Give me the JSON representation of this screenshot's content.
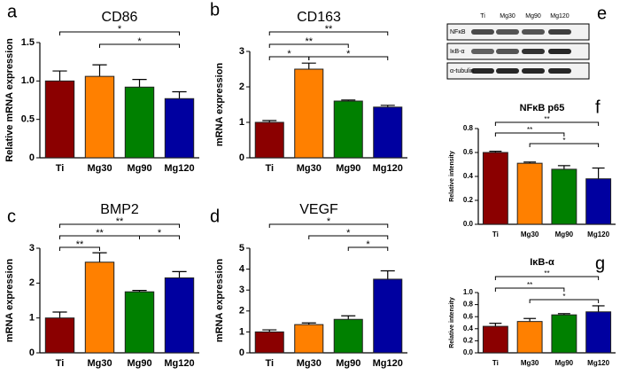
{
  "chart_data": [
    {
      "type": "bar",
      "panel_label": "a",
      "title": "CD86",
      "ylabel": "Relative mRNA expression",
      "categories": [
        "Ti",
        "Mg30",
        "Mg90",
        "Mg120"
      ],
      "values": [
        1.0,
        1.06,
        0.92,
        0.77
      ],
      "errors": [
        0.13,
        0.15,
        0.1,
        0.09
      ],
      "colors": [
        "#8b0000",
        "#ff8000",
        "#008000",
        "#0000a0"
      ],
      "ylim": [
        0,
        1.5
      ],
      "yticks": [
        0,
        0.5,
        {
          "value": 1,
          "label": "1.0"
        },
        1.5
      ],
      "significance": [
        {
          "from": 0,
          "to": 3,
          "label": "*"
        },
        {
          "from": 1,
          "to": 3,
          "label": "*"
        }
      ]
    },
    {
      "type": "bar",
      "panel_label": "b",
      "title": "CD163",
      "ylabel": "mRNA expression",
      "categories": [
        "Ti",
        "Mg30",
        "Mg90",
        "Mg120"
      ],
      "values": [
        1.0,
        2.5,
        1.6,
        1.43
      ],
      "errors": [
        0.05,
        0.17,
        0.03,
        0.05
      ],
      "colors": [
        "#8b0000",
        "#ff8000",
        "#008000",
        "#0000a0"
      ],
      "ylim": [
        0,
        3
      ],
      "yticks": [
        0,
        1,
        2,
        3
      ],
      "significance": [
        {
          "from": 0,
          "to": 3,
          "label": "**"
        },
        {
          "from": 0,
          "to": 2,
          "label": "**"
        },
        {
          "from": 0,
          "to": 1,
          "label": "*"
        },
        {
          "from": 1,
          "to": 3,
          "label": "*"
        }
      ]
    },
    {
      "type": "bar",
      "panel_label": "c",
      "title": "BMP2",
      "ylabel": "mRNA expression",
      "categories": [
        "Ti",
        "Mg30",
        "Mg90",
        "Mg120"
      ],
      "values": [
        1.0,
        2.6,
        1.75,
        2.15
      ],
      "errors": [
        0.17,
        0.27,
        0.04,
        0.18
      ],
      "colors": [
        "#8b0000",
        "#ff8000",
        "#008000",
        "#0000a0"
      ],
      "ylim": [
        0,
        3
      ],
      "yticks": [
        0,
        1,
        2,
        3
      ],
      "significance": [
        {
          "from": 0,
          "to": 3,
          "label": "**"
        },
        {
          "from": 0,
          "to": 2,
          "label": "**"
        },
        {
          "from": 0,
          "to": 1,
          "label": "**"
        },
        {
          "from": 2,
          "to": 3,
          "label": "*"
        }
      ]
    },
    {
      "type": "bar",
      "panel_label": "d",
      "title": "VEGF",
      "ylabel": "mRNA expression",
      "categories": [
        "Ti",
        "Mg30",
        "Mg90",
        "Mg120"
      ],
      "values": [
        1.0,
        1.35,
        1.6,
        3.52
      ],
      "errors": [
        0.1,
        0.08,
        0.17,
        0.4
      ],
      "colors": [
        "#8b0000",
        "#ff8000",
        "#008000",
        "#0000a0"
      ],
      "ylim": [
        0,
        5
      ],
      "yticks": [
        0,
        1,
        2,
        3,
        4,
        5
      ],
      "significance": [
        {
          "from": 0,
          "to": 3,
          "label": "*"
        },
        {
          "from": 1,
          "to": 3,
          "label": "*"
        },
        {
          "from": 2,
          "to": 3,
          "label": "*"
        }
      ]
    },
    {
      "type": "bar",
      "panel_label": "f",
      "title": "NFκB p65",
      "ylabel": "Relative intensity",
      "categories": [
        "Ti",
        "Mg30",
        "Mg90",
        "Mg120"
      ],
      "values": [
        0.6,
        0.51,
        0.46,
        0.38
      ],
      "errors": [
        0.01,
        0.01,
        0.03,
        0.09
      ],
      "colors": [
        "#8b0000",
        "#ff8000",
        "#008000",
        "#0000a0"
      ],
      "ylim": [
        0,
        0.8
      ],
      "yticks": [
        {
          "value": 0,
          "label": "0.0"
        },
        0.2,
        0.4,
        0.6,
        0.8
      ],
      "significance": [
        {
          "from": 0,
          "to": 3,
          "label": "**"
        },
        {
          "from": 0,
          "to": 2,
          "label": "**"
        },
        {
          "from": 1,
          "to": 3,
          "label": "*"
        }
      ]
    },
    {
      "type": "bar",
      "panel_label": "g",
      "title": "IκB-α",
      "ylabel": "Relative intensity",
      "categories": [
        "Ti",
        "Mg30",
        "Mg90",
        "Mg120"
      ],
      "values": [
        0.44,
        0.52,
        0.63,
        0.68
      ],
      "errors": [
        0.05,
        0.05,
        0.02,
        0.1
      ],
      "colors": [
        "#8b0000",
        "#ff8000",
        "#008000",
        "#0000a0"
      ],
      "ylim": [
        0,
        1
      ],
      "yticks": [
        {
          "value": 0,
          "label": "0.0"
        },
        0.2,
        0.4,
        0.6,
        0.8,
        {
          "value": 1,
          "label": "1.0"
        }
      ],
      "significance": [
        {
          "from": 0,
          "to": 3,
          "label": "**"
        },
        {
          "from": 0,
          "to": 2,
          "label": "**"
        },
        {
          "from": 1,
          "to": 3,
          "label": "*"
        }
      ]
    }
  ],
  "blot": {
    "panel_label": "e",
    "lanes": [
      "Ti",
      "Mg30",
      "Mg90",
      "Mg120"
    ],
    "rows": [
      "NFκB",
      "IκB-α",
      "α-tubulin"
    ]
  }
}
